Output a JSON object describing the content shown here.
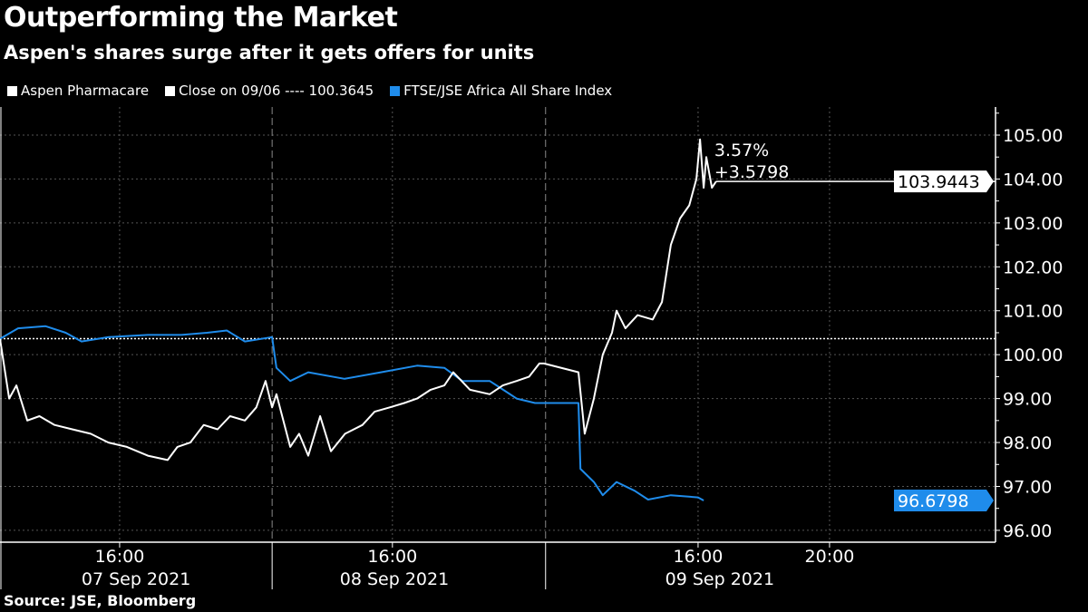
{
  "title": "Outperforming the Market",
  "subtitle": "Aspen's shares surge after it gets offers for units",
  "source": "Source: JSE, Bloomberg",
  "legend": [
    {
      "label": "Aspen Pharmacare",
      "color": "#ffffff"
    },
    {
      "label": "Close on 09/06 ---- 100.3645",
      "color": "#ffffff"
    },
    {
      "label": "FTSE/JSE Africa All Share Index",
      "color": "#1f8ceb"
    }
  ],
  "chart_data": {
    "type": "line",
    "title": "Outperforming the Market",
    "xlabel": "",
    "ylabel": "",
    "x_unit": "trading hours from chart start",
    "xlim": [
      0,
      30.29
    ],
    "ylim": [
      95.73,
      105.64
    ],
    "y_ticks": [
      "96.00",
      "97.00",
      "98.00",
      "99.00",
      "100.00",
      "101.00",
      "102.00",
      "103.00",
      "104.00",
      "105.00"
    ],
    "x_ticks": [
      {
        "x": 3.64,
        "label": "16:00"
      },
      {
        "x": 11.94,
        "label": "16:00"
      },
      {
        "x": 21.24,
        "label": "16:00"
      },
      {
        "x": 25.24,
        "label": "20:00"
      }
    ],
    "day_labels": [
      {
        "x": 4.14,
        "label": "07 Sep 2021"
      },
      {
        "x": 12.0,
        "label": "08 Sep 2021"
      },
      {
        "x": 21.9,
        "label": "09 Sep 2021"
      }
    ],
    "day_separators": [
      8.28,
      16.6
    ],
    "reference_line": {
      "label": "Close on 09/06",
      "value": 100.3645
    },
    "series": [
      {
        "name": "Aspen Pharmacare",
        "color": "#ffffff",
        "last_label": "103.9443",
        "points": [
          [
            0,
            100.36
          ],
          [
            0.28,
            99.0
          ],
          [
            0.5,
            99.3
          ],
          [
            0.83,
            98.5
          ],
          [
            1.2,
            98.6
          ],
          [
            1.66,
            98.4
          ],
          [
            2.2,
            98.3
          ],
          [
            2.76,
            98.2
          ],
          [
            3.3,
            98.0
          ],
          [
            3.86,
            97.9
          ],
          [
            4.5,
            97.7
          ],
          [
            5.1,
            97.6
          ],
          [
            5.4,
            97.9
          ],
          [
            5.79,
            98.0
          ],
          [
            6.2,
            98.4
          ],
          [
            6.62,
            98.3
          ],
          [
            7.0,
            98.6
          ],
          [
            7.45,
            98.5
          ],
          [
            7.8,
            98.8
          ],
          [
            8.08,
            99.4
          ],
          [
            8.28,
            98.8
          ],
          [
            8.41,
            99.1
          ],
          [
            8.83,
            97.9
          ],
          [
            9.1,
            98.2
          ],
          [
            9.38,
            97.7
          ],
          [
            9.74,
            98.6
          ],
          [
            10.07,
            97.8
          ],
          [
            10.5,
            98.2
          ],
          [
            11.03,
            98.4
          ],
          [
            11.4,
            98.7
          ],
          [
            11.86,
            98.8
          ],
          [
            12.3,
            98.9
          ],
          [
            12.69,
            99.0
          ],
          [
            13.1,
            99.2
          ],
          [
            13.52,
            99.3
          ],
          [
            13.79,
            99.6
          ],
          [
            14.3,
            99.2
          ],
          [
            14.9,
            99.1
          ],
          [
            15.3,
            99.3
          ],
          [
            15.72,
            99.4
          ],
          [
            16.1,
            99.5
          ],
          [
            16.41,
            99.8
          ],
          [
            16.55,
            99.8
          ],
          [
            17.6,
            99.6
          ],
          [
            17.79,
            98.2
          ],
          [
            18.07,
            99.0
          ],
          [
            18.34,
            100.0
          ],
          [
            18.62,
            100.5
          ],
          [
            18.76,
            101.0
          ],
          [
            19.03,
            100.6
          ],
          [
            19.4,
            100.9
          ],
          [
            19.86,
            100.8
          ],
          [
            20.14,
            101.2
          ],
          [
            20.41,
            102.5
          ],
          [
            20.69,
            103.1
          ],
          [
            20.97,
            103.4
          ],
          [
            21.19,
            104.0
          ],
          [
            21.3,
            104.9
          ],
          [
            21.41,
            103.8
          ],
          [
            21.49,
            104.5
          ],
          [
            21.66,
            103.8
          ],
          [
            21.79,
            103.9443
          ]
        ]
      },
      {
        "name": "FTSE/JSE Africa All Share Index",
        "color": "#1f8ceb",
        "last_label": "96.6798",
        "points": [
          [
            0,
            100.36
          ],
          [
            0.55,
            100.6
          ],
          [
            1.38,
            100.65
          ],
          [
            2.0,
            100.5
          ],
          [
            2.48,
            100.3
          ],
          [
            3.31,
            100.4
          ],
          [
            4.5,
            100.45
          ],
          [
            5.52,
            100.45
          ],
          [
            6.3,
            100.5
          ],
          [
            6.9,
            100.55
          ],
          [
            7.45,
            100.3
          ],
          [
            8.28,
            100.4
          ],
          [
            8.41,
            99.7
          ],
          [
            8.83,
            99.4
          ],
          [
            9.38,
            99.6
          ],
          [
            10.48,
            99.45
          ],
          [
            11.59,
            99.6
          ],
          [
            12.69,
            99.75
          ],
          [
            13.52,
            99.7
          ],
          [
            14.07,
            99.4
          ],
          [
            14.9,
            99.4
          ],
          [
            15.31,
            99.2
          ],
          [
            15.72,
            99.0
          ],
          [
            16.28,
            98.9
          ],
          [
            17.6,
            98.9
          ],
          [
            17.66,
            97.4
          ],
          [
            18.07,
            97.1
          ],
          [
            18.34,
            96.8
          ],
          [
            18.76,
            97.1
          ],
          [
            19.31,
            96.9
          ],
          [
            19.72,
            96.7
          ],
          [
            20.41,
            96.8
          ],
          [
            21.24,
            96.75
          ],
          [
            21.41,
            96.6798
          ]
        ]
      }
    ],
    "annotations": [
      {
        "text": "3.57%"
      },
      {
        "text": "+3.5798"
      }
    ]
  }
}
